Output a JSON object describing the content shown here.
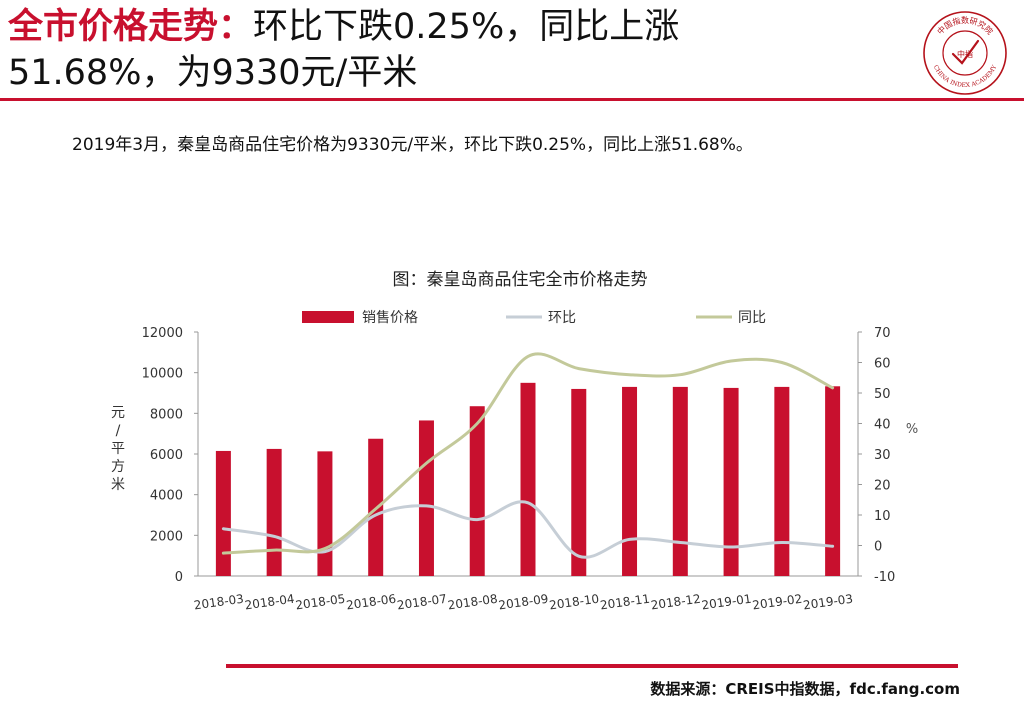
{
  "headline": {
    "emphasis": "全市价格走势：",
    "line1_rest": "环比下跌0.25%，同比上涨",
    "line2": "51.68%，为9330元/平米"
  },
  "logo": {
    "top_text": "中国指数研究院",
    "center_text": "中指",
    "bottom_text": "CHINA INDEX ACADEMY",
    "color": "#b5121b"
  },
  "summary": "2019年3月，秦皇岛商品住宅价格为9330元/平米，环比下跌0.25%，同比上涨51.68%。",
  "source": "数据来源：CREIS中指数据，fdc.fang.com",
  "chart_data": {
    "type": "bar",
    "title": "图：秦皇岛商品住宅全市价格走势",
    "categories": [
      "2018-03",
      "2018-04",
      "2018-05",
      "2018-06",
      "2018-07",
      "2018-08",
      "2018-09",
      "2018-10",
      "2018-11",
      "2018-12",
      "2019-01",
      "2019-02",
      "2019-03"
    ],
    "ylabel": "元/平方米",
    "y2label": "%",
    "ylim": [
      0,
      12000
    ],
    "yticks": [
      "0",
      "2000",
      "4000",
      "6000",
      "8000",
      "10000",
      "12000"
    ],
    "y2lim": [
      -10,
      70
    ],
    "y2ticks": [
      "-10",
      "0",
      "10",
      "20",
      "30",
      "40",
      "50",
      "60",
      "70"
    ],
    "legend_position": "top",
    "grid": false,
    "series": [
      {
        "name": "销售价格",
        "kind": "bar",
        "axis": "left",
        "color": "#c8102e",
        "values": [
          6150,
          6250,
          6130,
          6750,
          7650,
          8350,
          9500,
          9200,
          9300,
          9300,
          9250,
          9300,
          9330
        ]
      },
      {
        "name": "环比",
        "kind": "line",
        "axis": "right",
        "color": "#c6ced6",
        "values": [
          5.5,
          3,
          -2,
          10,
          13,
          8.5,
          14,
          -3.5,
          2,
          1,
          -0.5,
          1,
          -0.25
        ]
      },
      {
        "name": "同比",
        "kind": "line",
        "axis": "right",
        "color": "#c3c99a",
        "values": [
          -2.5,
          -1.5,
          -1,
          12,
          27,
          40,
          62,
          58,
          56,
          56,
          60.5,
          60,
          51.68
        ]
      }
    ]
  }
}
